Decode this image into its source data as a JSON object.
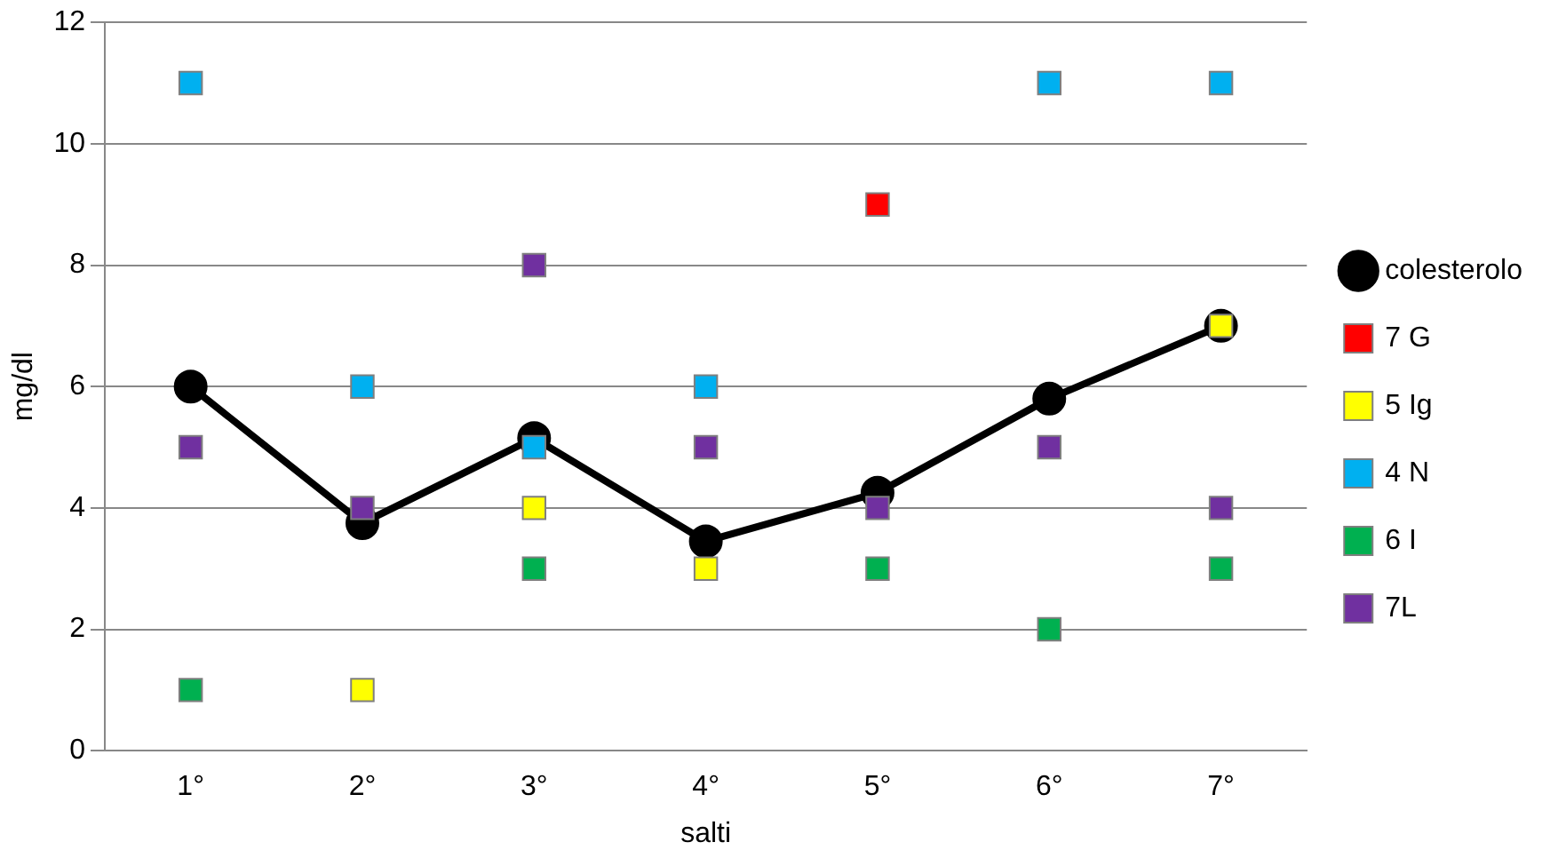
{
  "chart_data": {
    "type": "line",
    "xlabel": "salti",
    "ylabel": "mg/dl",
    "categories": [
      "1°",
      "2°",
      "3°",
      "4°",
      "5°",
      "6°",
      "7°"
    ],
    "series": [
      {
        "name": "colesterolo",
        "color": "#000000",
        "values": [
          6,
          3.75,
          5.15,
          3.45,
          4.25,
          5.8,
          7
        ]
      },
      {
        "name": "7 G",
        "type": "scatter",
        "marker": "square",
        "color": "#ff0000",
        "values": [
          null,
          null,
          null,
          null,
          9,
          null,
          null
        ]
      },
      {
        "name": "5 Ig",
        "type": "scatter",
        "marker": "square",
        "color": "#ffff00",
        "values": [
          null,
          1,
          4,
          3,
          null,
          null,
          7
        ]
      },
      {
        "name": "4 N",
        "type": "scatter",
        "marker": "square",
        "color": "#00b0f0",
        "values": [
          11,
          6,
          5,
          6,
          null,
          11,
          11
        ]
      },
      {
        "name": "6 I",
        "type": "scatter",
        "marker": "square",
        "color": "#00b050",
        "values": [
          1,
          null,
          3,
          null,
          3,
          2,
          3
        ]
      },
      {
        "name": "7L",
        "type": "scatter",
        "marker": "square",
        "color": "#7030a0",
        "values": [
          5,
          4,
          8,
          5,
          4,
          5,
          4
        ]
      }
    ],
    "ylim": [
      0,
      12
    ],
    "yticks": [
      0,
      2,
      4,
      6,
      8,
      10,
      12
    ],
    "grid": "y",
    "legend": "right",
    "marker": "circle",
    "line_style": "solid"
  }
}
